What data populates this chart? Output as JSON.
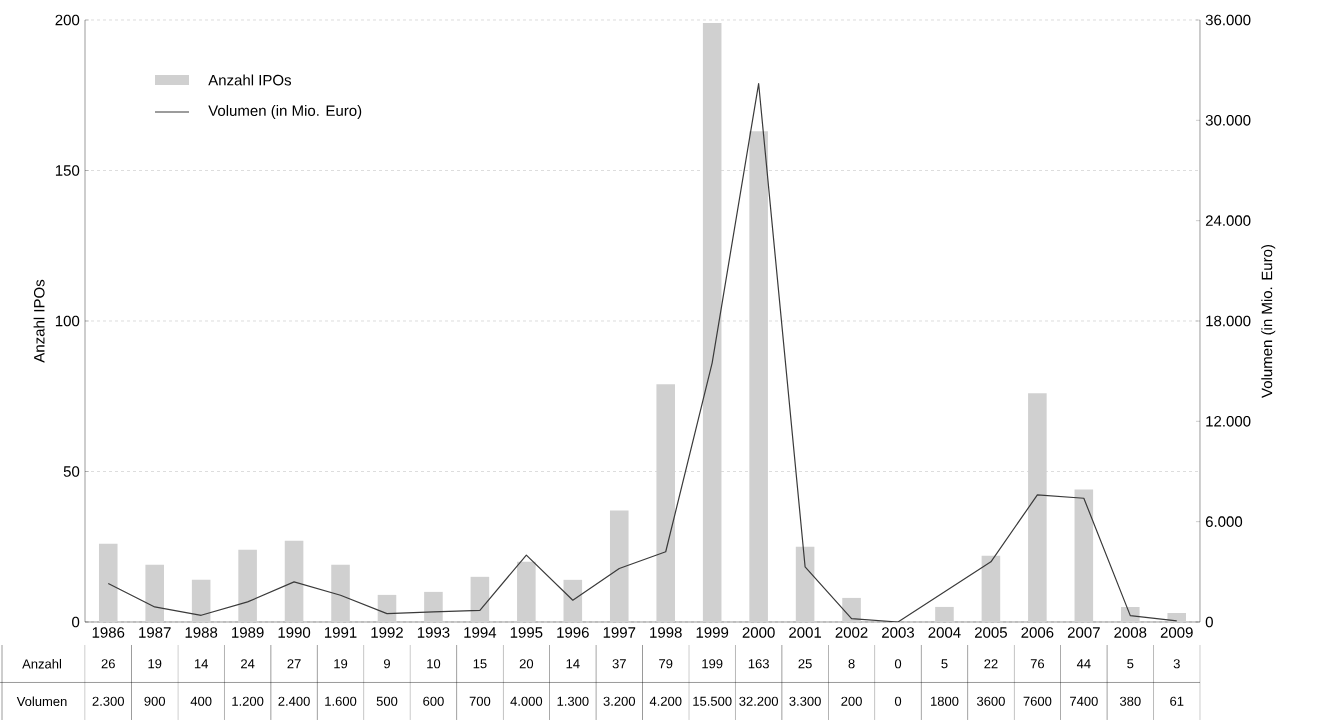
{
  "chart_data": {
    "type": "bar",
    "categories": [
      "1986",
      "1987",
      "1988",
      "1989",
      "1990",
      "1991",
      "1992",
      "1993",
      "1994",
      "1995",
      "1996",
      "1997",
      "1998",
      "1999",
      "2000",
      "2001",
      "2002",
      "2003",
      "2004",
      "2005",
      "2006",
      "2007",
      "2008",
      "2009"
    ],
    "series": [
      {
        "name": "Anzahl IPOs",
        "color": "#d0d0d0",
        "values": [
          26,
          19,
          14,
          24,
          27,
          19,
          9,
          10,
          15,
          20,
          14,
          37,
          79,
          199,
          163,
          25,
          8,
          0,
          5,
          22,
          76,
          44,
          5,
          3
        ],
        "value_labels": [
          "26",
          "19",
          "14",
          "24",
          "27",
          "19",
          "9",
          "10",
          "15",
          "20",
          "14",
          "37",
          "79",
          "199",
          "163",
          "25",
          "8",
          "0",
          "5",
          "22",
          "76",
          "44",
          "5",
          "3"
        ]
      },
      {
        "name": "Volumen (in Mio. Euro)",
        "type": "line",
        "axis": "y2",
        "color": "#3a3a3a",
        "values": [
          2300,
          900,
          400,
          1200,
          2400,
          1600,
          500,
          600,
          700,
          4000,
          1300,
          3200,
          4200,
          15500,
          32200,
          3300,
          200,
          0,
          1800,
          3600,
          7600,
          7400,
          380,
          61
        ],
        "value_labels": [
          "2.300",
          "900",
          "400",
          "1.200",
          "2.400",
          "1.600",
          "500",
          "600",
          "700",
          "4.000",
          "1.300",
          "3.200",
          "4.200",
          "15.500",
          "32.200",
          "3.300",
          "200",
          "0",
          "1800",
          "3600",
          "7600",
          "7400",
          "380",
          "61"
        ]
      }
    ],
    "ylabel": "Anzahl IPOs",
    "y2label": "Volumen (in Mio. Euro)",
    "ylim": [
      0,
      200
    ],
    "yticks": [
      0,
      50,
      100,
      150,
      200
    ],
    "y2lim": [
      0,
      36000
    ],
    "y2ticks": [
      0,
      {
        "value": 6000,
        "label": "6.000"
      },
      {
        "value": 12000,
        "label": "12.000"
      },
      {
        "value": 18000,
        "label": "18.000"
      },
      {
        "value": 24000,
        "label": "24.000"
      },
      {
        "value": 30000,
        "label": "30.000"
      },
      {
        "value": 36000,
        "label": "36.000"
      }
    ],
    "annotations": [
      "Anzahl",
      "Volumen"
    ],
    "grid": "y",
    "legend": "top left"
  }
}
